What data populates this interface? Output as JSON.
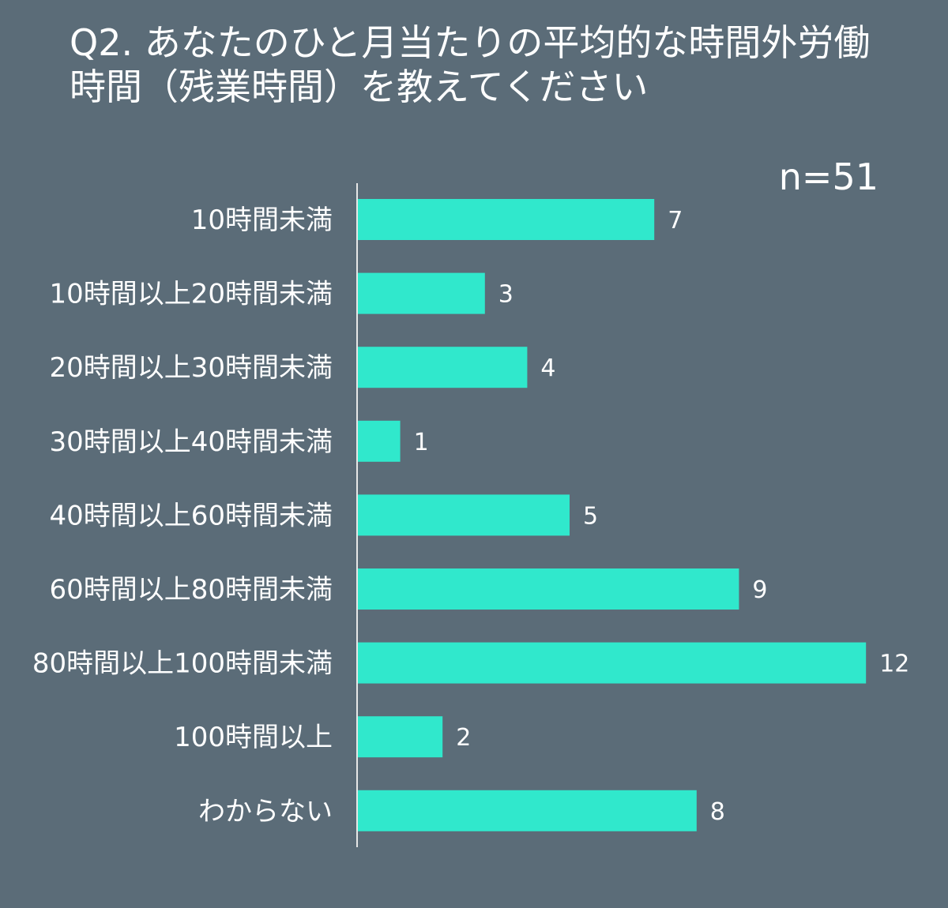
{
  "title": {
    "line1": "Q2. あなたのひと月当たりの平均的な時間外労働",
    "line2": "時間（残業時間）を教えてください"
  },
  "sample_size": "n=51",
  "colors": {
    "background": "#5b6c78",
    "bar": "#30e8cc",
    "axis": "#e6e6e6",
    "text": "#ffffff"
  },
  "chart_data": {
    "type": "bar",
    "orientation": "horizontal",
    "categories": [
      "10時間未満",
      "10時間以上20時間未満",
      "20時間以上30時間未満",
      "30時間以上40時間未満",
      "40時間以上60時間未満",
      "60時間以上80時間未満",
      "80時間以上100時間未満",
      "100時間以上",
      "わからない"
    ],
    "values": [
      7,
      3,
      4,
      1,
      5,
      9,
      12,
      2,
      8
    ],
    "data_labels": [
      "7",
      "3",
      "4",
      "1",
      "5",
      "9",
      "12",
      "2",
      "8"
    ],
    "xlim": [
      0,
      12
    ],
    "grid": false,
    "legend": "none"
  }
}
